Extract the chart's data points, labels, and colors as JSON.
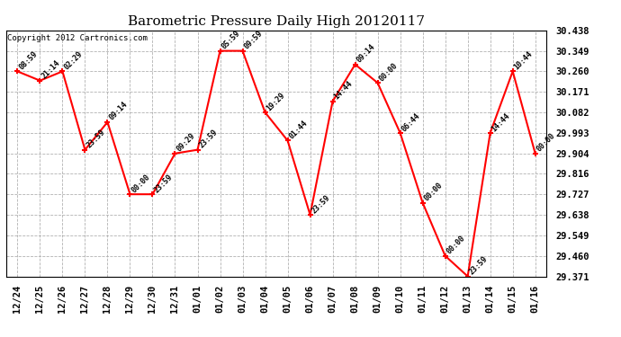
{
  "title": "Barometric Pressure Daily High 20120117",
  "copyright": "Copyright 2012 Cartronics.com",
  "x_labels": [
    "12/24",
    "12/25",
    "12/26",
    "12/27",
    "12/28",
    "12/29",
    "12/30",
    "12/31",
    "01/01",
    "01/02",
    "01/03",
    "01/04",
    "01/05",
    "01/06",
    "01/07",
    "01/08",
    "01/09",
    "01/10",
    "01/11",
    "01/12",
    "01/13",
    "01/14",
    "01/15",
    "01/16"
  ],
  "y_values": [
    30.26,
    30.22,
    30.26,
    29.92,
    30.04,
    29.727,
    29.727,
    29.904,
    29.92,
    30.349,
    30.349,
    30.082,
    29.96,
    29.638,
    30.13,
    30.29,
    30.21,
    29.993,
    29.69,
    29.46,
    29.371,
    29.993,
    30.26,
    29.904
  ],
  "point_labels": [
    "08:59",
    "21:14",
    "02:29",
    "23:59",
    "09:14",
    "00:00",
    "23:59",
    "09:29",
    "23:59",
    "05:59",
    "09:59",
    "19:29",
    "01:44",
    "23:59",
    "14:44",
    "09:14",
    "00:00",
    "06:44",
    "00:00",
    "00:00",
    "23:59",
    "14:44",
    "10:44",
    "00:00"
  ],
  "line_color": "#FF0000",
  "marker_color": "#FF0000",
  "bg_color": "#FFFFFF",
  "grid_color": "#AAAAAA",
  "ylim_min": 29.371,
  "ylim_max": 30.438,
  "yticks": [
    29.371,
    29.46,
    29.549,
    29.638,
    29.727,
    29.816,
    29.904,
    29.993,
    30.082,
    30.171,
    30.26,
    30.349,
    30.438
  ],
  "title_fontsize": 11,
  "label_fontsize": 6,
  "copyright_fontsize": 6.5,
  "tick_fontsize": 7.5
}
